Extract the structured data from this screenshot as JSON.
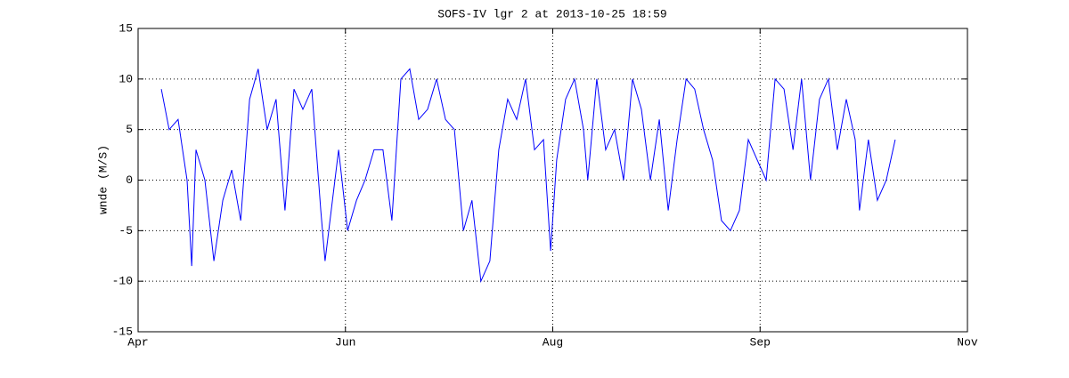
{
  "chart_data": {
    "type": "line",
    "title": "SOFS-IV lgr 2 at 2013-10-25 18:59",
    "y_label": "wnde (M/S)",
    "xlim": [
      0,
      232
    ],
    "xticks": [
      {
        "value": 0,
        "label": "Apr"
      },
      {
        "value": 58,
        "label": "Jun"
      },
      {
        "value": 116,
        "label": "Aug"
      },
      {
        "value": 174,
        "label": "Sep"
      },
      {
        "value": 232,
        "label": "Nov"
      }
    ],
    "ylim": [
      -15,
      15
    ],
    "yticks": [
      -15,
      -10,
      -5,
      0,
      5,
      10,
      15
    ],
    "grid": true,
    "x": [
      6.5,
      8.7,
      11.2,
      13.7,
      15.0,
      16.2,
      18.7,
      21.2,
      23.7,
      26.2,
      28.7,
      31.2,
      33.6,
      36.1,
      38.6,
      41.1,
      43.6,
      46.1,
      48.6,
      51.1,
      52.3,
      56.1,
      58.6,
      61.1,
      63.5,
      66.0,
      68.5,
      71.0,
      73.5,
      76.0,
      78.5,
      81.0,
      83.5,
      86.0,
      88.5,
      91.0,
      93.4,
      95.9,
      98.4,
      100.9,
      103.4,
      105.9,
      108.4,
      110.9,
      113.4,
      115.4,
      117.1,
      119.6,
      122.1,
      124.6,
      125.8,
      128.3,
      130.8,
      133.3,
      135.8,
      138.3,
      140.8,
      143.3,
      145.8,
      148.3,
      150.8,
      153.3,
      155.7,
      158.2,
      160.7,
      163.2,
      165.7,
      168.2,
      170.7,
      173.2,
      175.7,
      178.2,
      180.7,
      183.2,
      185.6,
      188.1,
      190.6,
      193.1,
      195.6,
      198.1,
      200.6,
      201.8,
      204.3,
      206.8,
      209.3,
      211.8
    ],
    "series": [
      {
        "name": "wnde",
        "color": "#0000ff",
        "values": [
          9,
          5,
          6,
          0,
          -8.5,
          3,
          0,
          -8,
          -2,
          1,
          -4,
          8,
          11,
          5,
          8,
          -3,
          9,
          7,
          9,
          -3,
          -8,
          3,
          -5,
          -2,
          0,
          3,
          3,
          -4,
          10,
          11,
          6,
          7,
          10,
          6,
          5,
          -5,
          -2,
          -10,
          -8,
          3,
          8,
          6,
          10,
          3,
          4,
          -7,
          2,
          8,
          10,
          5,
          0,
          10,
          3,
          5,
          0,
          10,
          7,
          0,
          6,
          -3,
          4,
          10,
          9,
          5,
          2,
          -4,
          -5,
          -3,
          4,
          2,
          0,
          10,
          9,
          3,
          10,
          0,
          8,
          10,
          3,
          8,
          4,
          -3,
          4,
          -2,
          0,
          4
        ]
      }
    ]
  }
}
